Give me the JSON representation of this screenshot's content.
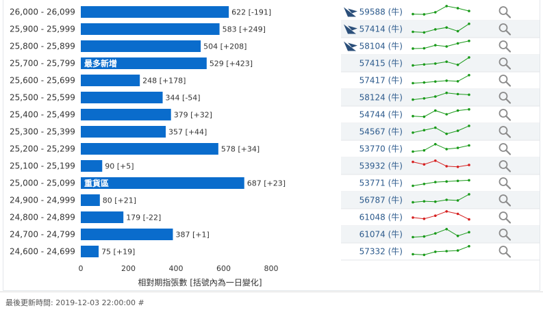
{
  "chart_data": {
    "type": "bar",
    "orientation": "horizontal",
    "xlabel": "相對期指張數 [括號內為一日變化]",
    "xlim": [
      0,
      800
    ],
    "xticks": [
      "0",
      "200",
      "400",
      "600",
      "800"
    ],
    "grid": false,
    "rows": [
      {
        "range": "26,000 - 26,099",
        "value": 622,
        "change": "[-191]",
        "badge": "",
        "has_icon": true,
        "code": "59588",
        "unit": "(牛)",
        "trend": "up"
      },
      {
        "range": "25,900 - 25,999",
        "value": 583,
        "change": "[+249]",
        "badge": "",
        "has_icon": true,
        "code": "57414",
        "unit": "(牛)",
        "trend": "up"
      },
      {
        "range": "25,800 - 25,899",
        "value": 504,
        "change": "[+208]",
        "badge": "",
        "has_icon": true,
        "code": "58104",
        "unit": "(牛)",
        "trend": "up"
      },
      {
        "range": "25,700 - 25,799",
        "value": 529,
        "change": "[+423]",
        "badge": "最多新增",
        "has_icon": false,
        "code": "57415",
        "unit": "(牛)",
        "trend": "up"
      },
      {
        "range": "25,600 - 25,699",
        "value": 248,
        "change": "[+178]",
        "badge": "",
        "has_icon": false,
        "code": "57417",
        "unit": "(牛)",
        "trend": "up"
      },
      {
        "range": "25,500 - 25,599",
        "value": 344,
        "change": "[-54]",
        "badge": "",
        "has_icon": false,
        "code": "58124",
        "unit": "(牛)",
        "trend": "up"
      },
      {
        "range": "25,400 - 25,499",
        "value": 379,
        "change": "[+32]",
        "badge": "",
        "has_icon": false,
        "code": "54744",
        "unit": "(牛)",
        "trend": "up"
      },
      {
        "range": "25,300 - 25,399",
        "value": 357,
        "change": "[+44]",
        "badge": "",
        "has_icon": false,
        "code": "54567",
        "unit": "(牛)",
        "trend": "up"
      },
      {
        "range": "25,200 - 25,299",
        "value": 578,
        "change": "[+34]",
        "badge": "",
        "has_icon": false,
        "code": "53770",
        "unit": "(牛)",
        "trend": "up"
      },
      {
        "range": "25,100 - 25,199",
        "value": 90,
        "change": "[+5]",
        "badge": "",
        "has_icon": false,
        "code": "53932",
        "unit": "(牛)",
        "trend": "down"
      },
      {
        "range": "25,000 - 25,099",
        "value": 687,
        "change": "[+23]",
        "badge": "重貨區",
        "has_icon": false,
        "code": "53771",
        "unit": "(牛)",
        "trend": "up"
      },
      {
        "range": "24,900 - 24,999",
        "value": 80,
        "change": "[+21]",
        "badge": "",
        "has_icon": false,
        "code": "56787",
        "unit": "(牛)",
        "trend": "up"
      },
      {
        "range": "24,800 - 24,899",
        "value": 179,
        "change": "[-22]",
        "badge": "",
        "has_icon": false,
        "code": "61048",
        "unit": "(牛)",
        "trend": "down"
      },
      {
        "range": "24,700 - 24,799",
        "value": 387,
        "change": "[+1]",
        "badge": "",
        "has_icon": false,
        "code": "61074",
        "unit": "(牛)",
        "trend": "up"
      },
      {
        "range": "24,600 - 24,699",
        "value": 75,
        "change": "[+19]",
        "badge": "",
        "has_icon": false,
        "code": "57332",
        "unit": "(牛)",
        "trend": "up"
      }
    ]
  },
  "sparklines": [
    [
      0.7,
      0.72,
      0.55,
      0.05,
      0.22,
      0.45
    ],
    [
      0.75,
      0.8,
      0.55,
      0.4,
      0.7,
      0.1
    ],
    [
      0.72,
      0.7,
      0.45,
      0.55,
      0.3,
      0.1
    ],
    [
      0.7,
      0.62,
      0.55,
      0.4,
      0.65,
      0.05
    ],
    [
      0.75,
      0.7,
      0.62,
      0.55,
      0.6,
      0.1
    ],
    [
      0.7,
      0.6,
      0.45,
      0.15,
      0.25,
      0.3
    ],
    [
      0.65,
      0.7,
      0.2,
      0.5,
      0.2,
      0.1
    ],
    [
      0.6,
      0.4,
      0.2,
      0.7,
      0.45,
      0.05
    ],
    [
      0.75,
      0.65,
      0.15,
      0.55,
      0.45,
      0.25
    ],
    [
      0.2,
      0.4,
      0.1,
      0.55,
      0.6,
      0.45
    ],
    [
      0.75,
      0.6,
      0.45,
      0.4,
      0.35,
      0.3
    ],
    [
      0.7,
      0.62,
      0.65,
      0.5,
      0.55,
      0.05
    ],
    [
      0.55,
      0.65,
      0.4,
      0.05,
      0.25,
      0.7
    ],
    [
      0.75,
      0.7,
      0.45,
      0.1,
      0.65,
      0.35
    ],
    [
      0.75,
      0.8,
      0.55,
      0.5,
      0.45,
      0.1
    ]
  ],
  "colors": {
    "bar": "#0a6ccc",
    "row_alt": "#f1f4f6",
    "row_sep": "#e3e6e8",
    "code_text": "#2c5a8c",
    "spark_up": "#1a9a1a",
    "spark_down": "#d62020",
    "icon": "#2b4f7a",
    "search": "#8a8a8a"
  },
  "footer": {
    "text": "最後更新時間: 2019-12-03 22:00:00 #"
  }
}
